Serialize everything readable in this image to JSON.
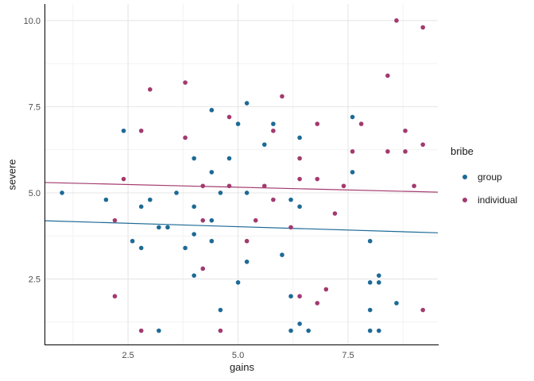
{
  "chart_data": {
    "type": "scatter",
    "title": "",
    "xlabel": "gains",
    "ylabel": "severe",
    "xlim": [
      0.62,
      9.54
    ],
    "ylim": [
      0.6,
      10.48
    ],
    "x_ticks": [
      2.5,
      5.0,
      7.5
    ],
    "x_tick_labels": [
      "2.5",
      "5.0",
      "7.5"
    ],
    "y_ticks": [
      2.5,
      5.0,
      7.5,
      10.0
    ],
    "y_tick_labels": [
      "2.5",
      "5.0",
      "7.5",
      "10.0"
    ],
    "x_minor_ticks": [
      1.25,
      3.75,
      6.25,
      8.75
    ],
    "y_minor_ticks": [
      1.25,
      3.75,
      6.25,
      8.75
    ],
    "grid": "major and minor gridlines on white background",
    "legend": {
      "title": "bribe",
      "position": "right",
      "entries": [
        {
          "label": "group",
          "color": "#1d6a96"
        },
        {
          "label": "individual",
          "color": "#a23a6e"
        }
      ]
    },
    "colors": {
      "background": "#ffffff",
      "axis_line": "#000000",
      "tick_label": "#4d4d4d",
      "title_text": "#1a1a1a",
      "grid_major": "#e4e4e4",
      "grid_minor": "#f2f2f2"
    },
    "series": [
      {
        "name": "group",
        "color": "#1d6a96",
        "trend": {
          "x": [
            0.62,
            9.54
          ],
          "y": [
            4.19,
            3.84
          ]
        },
        "points": [
          [
            1.0,
            5.0
          ],
          [
            2.0,
            4.8
          ],
          [
            2.4,
            6.8
          ],
          [
            2.6,
            3.6
          ],
          [
            2.8,
            4.6
          ],
          [
            2.8,
            3.4
          ],
          [
            3.0,
            4.8
          ],
          [
            3.2,
            4.0
          ],
          [
            3.2,
            1.0
          ],
          [
            3.4,
            4.0
          ],
          [
            3.6,
            5.0
          ],
          [
            3.8,
            3.4
          ],
          [
            4.0,
            6.0
          ],
          [
            4.0,
            4.6
          ],
          [
            4.0,
            3.8
          ],
          [
            4.0,
            2.6
          ],
          [
            4.4,
            7.4
          ],
          [
            4.4,
            5.6
          ],
          [
            4.4,
            4.2
          ],
          [
            4.4,
            3.6
          ],
          [
            4.6,
            5.0
          ],
          [
            4.6,
            1.6
          ],
          [
            4.8,
            6.0
          ],
          [
            5.0,
            7.0
          ],
          [
            5.0,
            2.4
          ],
          [
            5.2,
            7.6
          ],
          [
            5.2,
            5.0
          ],
          [
            5.2,
            3.0
          ],
          [
            5.6,
            6.4
          ],
          [
            5.8,
            7.0
          ],
          [
            6.0,
            3.2
          ],
          [
            6.2,
            4.8
          ],
          [
            6.2,
            2.0
          ],
          [
            6.2,
            1.0
          ],
          [
            6.4,
            6.6
          ],
          [
            6.4,
            4.6
          ],
          [
            6.4,
            1.2
          ],
          [
            6.6,
            1.0
          ],
          [
            7.6,
            7.2
          ],
          [
            7.6,
            5.6
          ],
          [
            8.0,
            3.6
          ],
          [
            8.0,
            2.4
          ],
          [
            8.0,
            1.6
          ],
          [
            8.0,
            1.0
          ],
          [
            8.2,
            2.6
          ],
          [
            8.2,
            2.4
          ],
          [
            8.2,
            1.0
          ],
          [
            8.6,
            1.8
          ]
        ]
      },
      {
        "name": "individual",
        "color": "#a23a6e",
        "trend": {
          "x": [
            0.62,
            9.54
          ],
          "y": [
            5.3,
            5.02
          ]
        },
        "points": [
          [
            2.2,
            4.2
          ],
          [
            2.2,
            2.0
          ],
          [
            2.4,
            5.4
          ],
          [
            2.8,
            6.8
          ],
          [
            2.8,
            1.0
          ],
          [
            3.0,
            8.0
          ],
          [
            3.8,
            8.2
          ],
          [
            3.8,
            6.6
          ],
          [
            4.2,
            5.2
          ],
          [
            4.2,
            4.2
          ],
          [
            4.2,
            2.8
          ],
          [
            4.6,
            1.0
          ],
          [
            4.8,
            7.2
          ],
          [
            4.8,
            5.2
          ],
          [
            5.2,
            3.6
          ],
          [
            5.4,
            4.2
          ],
          [
            5.6,
            5.2
          ],
          [
            5.8,
            6.8
          ],
          [
            5.8,
            4.8
          ],
          [
            6.0,
            7.8
          ],
          [
            6.2,
            4.0
          ],
          [
            6.4,
            6.0
          ],
          [
            6.4,
            5.4
          ],
          [
            6.4,
            2.0
          ],
          [
            6.8,
            7.0
          ],
          [
            6.8,
            5.4
          ],
          [
            6.8,
            1.8
          ],
          [
            7.0,
            2.2
          ],
          [
            7.2,
            4.4
          ],
          [
            7.4,
            5.2
          ],
          [
            7.6,
            6.2
          ],
          [
            7.8,
            7.0
          ],
          [
            8.4,
            8.4
          ],
          [
            8.4,
            6.2
          ],
          [
            8.6,
            10.0
          ],
          [
            8.8,
            6.8
          ],
          [
            8.8,
            6.2
          ],
          [
            9.0,
            5.2
          ],
          [
            9.2,
            9.8
          ],
          [
            9.2,
            6.4
          ],
          [
            9.2,
            1.6
          ]
        ]
      }
    ]
  }
}
